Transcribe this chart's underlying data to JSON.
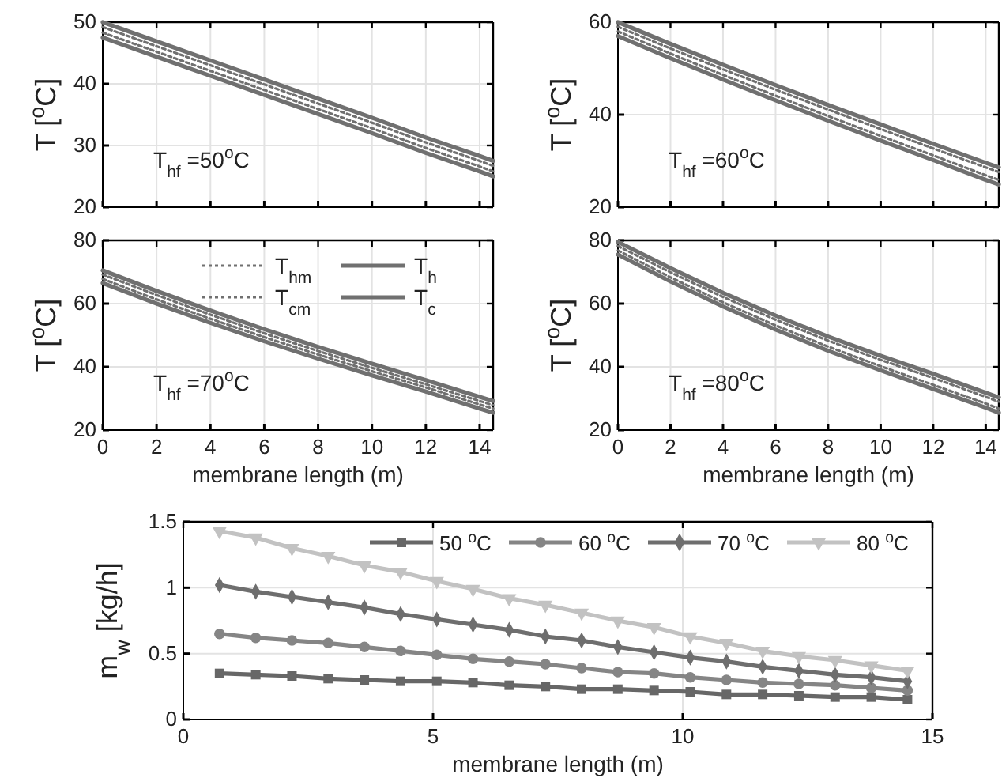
{
  "chart_data": [
    {
      "type": "line",
      "ylabel": "T [$^{o}$C]",
      "annotations": [
        "T$_{hf}$ =50$^{o}$C"
      ],
      "x": [
        0,
        2,
        4,
        6,
        8,
        10,
        12,
        14,
        14.5
      ],
      "xlim": [
        0,
        14.5
      ],
      "xticks": [
        0,
        2,
        4,
        6,
        8,
        10,
        12,
        14
      ],
      "ylim": [
        20,
        50
      ],
      "yticks": [
        20,
        30,
        40,
        50
      ],
      "grid": true,
      "tick_labels": "y",
      "marker": "none",
      "series": [
        {
          "color": "#707070",
          "line_style": "dotted",
          "values": [
            49.2,
            46.1,
            43.0,
            39.9,
            36.8,
            33.7,
            30.5,
            27.5,
            26.7
          ]
        },
        {
          "color": "#707070",
          "line_style": "solid",
          "values": [
            50,
            46.9,
            43.8,
            40.7,
            37.6,
            34.5,
            31.3,
            28.3,
            27.5
          ]
        },
        {
          "color": "#707070",
          "line_style": "dotted",
          "values": [
            48.3,
            45.2,
            42.1,
            39.0,
            35.9,
            32.8,
            29.6,
            26.6,
            25.8
          ]
        },
        {
          "color": "#707070",
          "line_style": "solid",
          "values": [
            47.5,
            44.4,
            41.3,
            38.2,
            35.1,
            32.0,
            28.8,
            25.8,
            25.0
          ]
        }
      ]
    },
    {
      "type": "line",
      "ylabel": "T [$^{o}$C]",
      "annotations": [
        "T$_{hf}$ =60$^{o}$C"
      ],
      "x": [
        0,
        2,
        4,
        6,
        8,
        10,
        12,
        14,
        14.5
      ],
      "xlim": [
        0,
        14.5
      ],
      "xticks": [
        0,
        2,
        4,
        6,
        8,
        10,
        12,
        14
      ],
      "ylim": [
        20,
        60
      ],
      "yticks": [
        20,
        40,
        60
      ],
      "grid": true,
      "tick_labels": "y",
      "marker": "none",
      "series": [
        {
          "color": "#707070",
          "line_style": "dotted",
          "values": [
            59,
            54.3,
            49.8,
            45.4,
            41.1,
            36.9,
            32.7,
            28.6,
            27.6
          ]
        },
        {
          "color": "#707070",
          "line_style": "solid",
          "values": [
            60,
            55.3,
            50.8,
            46.4,
            42.1,
            37.9,
            33.7,
            29.6,
            28.6
          ]
        },
        {
          "color": "#707070",
          "line_style": "dotted",
          "values": [
            58,
            53.2,
            48.6,
            44.1,
            39.7,
            35.4,
            31.2,
            26.9,
            25.9
          ]
        },
        {
          "color": "#707070",
          "line_style": "solid",
          "values": [
            57,
            52.2,
            47.6,
            43.1,
            38.7,
            34.4,
            30.2,
            25.9,
            24.9
          ]
        }
      ]
    },
    {
      "type": "line",
      "ylabel": "T [$^{o}$C]",
      "xlabel": "membrane length (m)",
      "annotations": [
        "T$_{hf}$ =70$^{o}$C"
      ],
      "x": [
        0,
        2,
        4,
        6,
        8,
        10,
        12,
        14,
        14.5
      ],
      "xlim": [
        0,
        14.5
      ],
      "xticks": [
        0,
        2,
        4,
        6,
        8,
        10,
        12,
        14
      ],
      "ylim": [
        20,
        80
      ],
      "yticks": [
        20,
        40,
        60,
        80
      ],
      "grid": true,
      "legend": "top right",
      "marker": "none",
      "series": [
        {
          "name": "T$_{hm}$",
          "color": "#707070",
          "line_style": "dotted",
          "values": [
            69.2,
            62.7,
            56.5,
            50.6,
            45.0,
            39.7,
            34.5,
            29.2,
            27.9
          ]
        },
        {
          "name": "T$_{h}$",
          "color": "#707070",
          "line_style": "solid",
          "values": [
            70.5,
            64,
            57.8,
            51.9,
            46.3,
            41,
            35.8,
            30.5,
            29.2
          ]
        },
        {
          "name": "T$_{cm}$",
          "color": "#707070",
          "line_style": "dotted",
          "values": [
            67.8,
            61.3,
            55.2,
            49.4,
            43.9,
            38.6,
            33.5,
            28.1,
            26.8
          ]
        },
        {
          "name": "T$_{c}$",
          "color": "#707070",
          "line_style": "solid",
          "values": [
            66.5,
            60.0,
            53.9,
            48.1,
            42.6,
            37.3,
            32.2,
            26.8,
            25.5
          ]
        }
      ]
    },
    {
      "type": "line",
      "ylabel": "T [$^{o}$C]",
      "xlabel": "membrane length (m)",
      "annotations": [
        "T$_{hf}$ =80$^{o}$C"
      ],
      "x": [
        0,
        2,
        4,
        6,
        8,
        10,
        12,
        14,
        14.5
      ],
      "xlim": [
        0,
        14.5
      ],
      "xticks": [
        0,
        2,
        4,
        6,
        8,
        10,
        12,
        14
      ],
      "ylim": [
        20,
        80
      ],
      "yticks": [
        20,
        40,
        60,
        80
      ],
      "grid": true,
      "marker": "none",
      "series": [
        {
          "color": "#707070",
          "line_style": "dotted",
          "values": [
            78.2,
            69.9,
            62.1,
            54.9,
            48.3,
            42.2,
            36.5,
            30.5,
            29.0
          ]
        },
        {
          "color": "#707070",
          "line_style": "solid",
          "values": [
            79.5,
            71.2,
            63.4,
            56.2,
            49.6,
            43.5,
            37.8,
            31.8,
            30.3
          ]
        },
        {
          "color": "#707070",
          "line_style": "dotted",
          "values": [
            76.8,
            68.3,
            60.4,
            53.1,
            46.4,
            40.2,
            34.3,
            28.4,
            26.8
          ]
        },
        {
          "color": "#707070",
          "line_style": "solid",
          "values": [
            75.5,
            67.0,
            59.1,
            51.8,
            45.1,
            38.9,
            33.0,
            27.1,
            25.5
          ]
        }
      ]
    },
    {
      "type": "line",
      "ylabel": "m$_{w}$ [kg/h]",
      "xlabel": "membrane length (m)",
      "x": [
        0.725,
        1.45,
        2.175,
        2.9,
        3.625,
        4.35,
        5.075,
        5.8,
        6.525,
        7.25,
        7.975,
        8.7,
        9.425,
        10.15,
        10.875,
        11.6,
        12.325,
        13.05,
        13.775,
        14.5
      ],
      "xlim": [
        0,
        15
      ],
      "xticks": [
        0,
        5,
        10,
        15
      ],
      "ylim": [
        0,
        1.5
      ],
      "yticks": [
        0,
        0.5,
        1,
        1.5
      ],
      "grid": true,
      "legend": "top right",
      "series": [
        {
          "name": "50 $^{o}$C",
          "color": "#676767",
          "marker": "square",
          "values": [
            0.35,
            0.34,
            0.33,
            0.31,
            0.3,
            0.29,
            0.29,
            0.28,
            0.26,
            0.25,
            0.23,
            0.23,
            0.22,
            0.21,
            0.19,
            0.19,
            0.18,
            0.17,
            0.17,
            0.15
          ]
        },
        {
          "name": "60 $^{o}$C",
          "color": "#858585",
          "marker": "circle",
          "values": [
            0.65,
            0.62,
            0.6,
            0.58,
            0.55,
            0.52,
            0.49,
            0.46,
            0.44,
            0.42,
            0.39,
            0.36,
            0.35,
            0.32,
            0.3,
            0.28,
            0.27,
            0.26,
            0.24,
            0.22
          ]
        },
        {
          "name": "70 $^{o}$C",
          "color": "#6e6e6e",
          "marker": "diamond",
          "values": [
            1.02,
            0.97,
            0.93,
            0.89,
            0.85,
            0.8,
            0.76,
            0.72,
            0.68,
            0.63,
            0.6,
            0.55,
            0.51,
            0.47,
            0.44,
            0.4,
            0.37,
            0.34,
            0.32,
            0.29
          ]
        },
        {
          "name": "80 $^{o}$C",
          "color": "#c2c2c2",
          "marker": "triangle",
          "values": [
            1.43,
            1.38,
            1.3,
            1.24,
            1.17,
            1.12,
            1.05,
            0.99,
            0.92,
            0.87,
            0.81,
            0.75,
            0.7,
            0.63,
            0.58,
            0.52,
            0.48,
            0.45,
            0.41,
            0.37
          ]
        }
      ]
    }
  ]
}
